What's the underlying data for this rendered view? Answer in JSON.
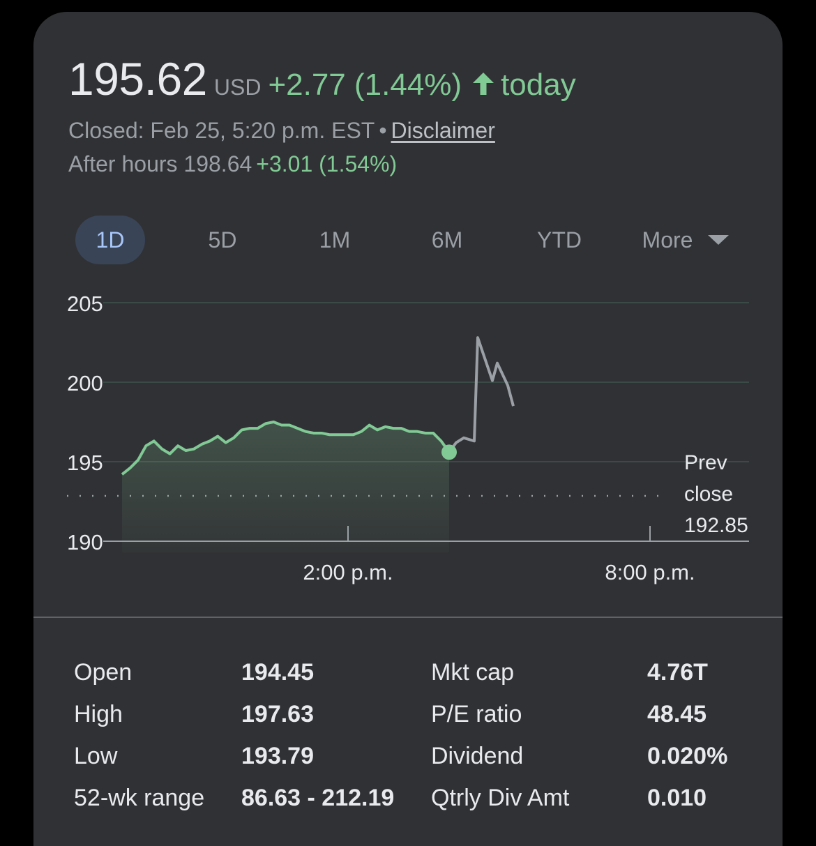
{
  "quote": {
    "price": "195.62",
    "currency": "USD",
    "change": "+2.77 (1.44%)",
    "direction_icon": "arrow-up-icon",
    "period": "today",
    "closed_text": "Closed: Feb 25, 5:20 p.m. EST",
    "separator": "•",
    "disclaimer_label": "Disclaimer",
    "after_hours_label": "After hours",
    "after_hours_price": "198.64",
    "after_hours_change": "+3.01 (1.54%)"
  },
  "colors": {
    "positive": "#81c995",
    "after_hours_line": "#9aa0a6",
    "card": "#303134",
    "tab_active_bg": "#394457"
  },
  "tabs": [
    {
      "label": "1D",
      "active": true
    },
    {
      "label": "5D",
      "active": false
    },
    {
      "label": "1M",
      "active": false
    },
    {
      "label": "6M",
      "active": false
    },
    {
      "label": "YTD",
      "active": false
    },
    {
      "label": "More",
      "active": false,
      "icon": "dropdown-triangle-icon"
    }
  ],
  "chart_data": {
    "type": "line",
    "ylim": [
      190,
      205
    ],
    "y_ticks": [
      "205",
      "200",
      "195",
      "190"
    ],
    "x_ticks": [
      "2:00 p.m.",
      "8:00 p.m."
    ],
    "prev_close": {
      "label_line1": "Prev",
      "label_line2": "close",
      "value": "192.85",
      "y": 192.85
    },
    "series": [
      {
        "segment": "regular-session",
        "y": [
          194.2,
          194.6,
          195.1,
          196.0,
          196.3,
          195.8,
          195.5,
          196.0,
          195.7,
          195.8,
          196.1,
          196.3,
          196.6,
          196.2,
          196.5,
          197.0,
          197.1,
          197.1,
          197.4,
          197.5,
          197.3,
          197.3,
          197.1,
          196.9,
          196.8,
          196.8,
          196.7,
          196.7,
          196.7,
          196.7,
          196.9,
          197.3,
          197.0,
          197.2,
          197.1,
          197.1,
          196.9,
          196.9,
          196.8,
          196.8,
          196.3,
          195.6
        ]
      },
      {
        "segment": "after-hours",
        "y": [
          195.6,
          196.2,
          196.5,
          196.3,
          202.8,
          200.1,
          201.2,
          199.8,
          198.5
        ]
      }
    ]
  },
  "stats": {
    "left": [
      {
        "label": "Open",
        "value": "194.45"
      },
      {
        "label": "High",
        "value": "197.63"
      },
      {
        "label": "Low",
        "value": "193.79"
      },
      {
        "label": "52-wk range",
        "value": "86.63 - 212.19"
      }
    ],
    "right": [
      {
        "label": "Mkt cap",
        "value": "4.76T"
      },
      {
        "label": "P/E ratio",
        "value": "48.45"
      },
      {
        "label": "Dividend",
        "value": "0.020%"
      },
      {
        "label": "Qtrly Div Amt",
        "value": "0.010"
      }
    ]
  }
}
